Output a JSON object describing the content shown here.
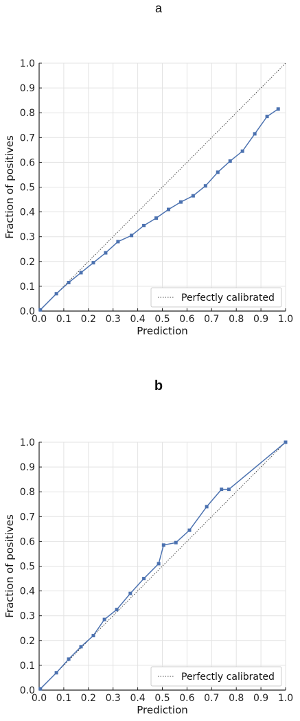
{
  "colors": {
    "series": "#4C72B0",
    "reference": "#444444",
    "grid": "#e3e3e3",
    "axis": "#222222"
  },
  "chart_data": [
    {
      "panel_label": "a",
      "type": "line",
      "xlabel": "Prediction",
      "ylabel": "Fraction of positives",
      "xlim": [
        0,
        1
      ],
      "ylim": [
        0,
        1
      ],
      "xticks": [
        "0.0",
        "0.1",
        "0.2",
        "0.3",
        "0.4",
        "0.5",
        "0.6",
        "0.7",
        "0.8",
        "0.9",
        "1.0"
      ],
      "yticks": [
        "0.0",
        "0.1",
        "0.2",
        "0.3",
        "0.4",
        "0.5",
        "0.6",
        "0.7",
        "0.8",
        "0.9",
        "1.0"
      ],
      "grid": true,
      "legend": {
        "entries": [
          "Perfectly calibrated"
        ],
        "placement": "bottom-right"
      },
      "reference_line": {
        "name": "Perfectly calibrated",
        "x": [
          0,
          1
        ],
        "y": [
          0,
          1
        ],
        "style": "dotted"
      },
      "series": [
        {
          "x": [
            0.005,
            0.07,
            0.12,
            0.17,
            0.22,
            0.27,
            0.32,
            0.375,
            0.425,
            0.475,
            0.525,
            0.575,
            0.625,
            0.675,
            0.725,
            0.775,
            0.825,
            0.875,
            0.925,
            0.97
          ],
          "y": [
            0.005,
            0.07,
            0.115,
            0.155,
            0.195,
            0.235,
            0.28,
            0.305,
            0.345,
            0.375,
            0.41,
            0.44,
            0.465,
            0.505,
            0.56,
            0.605,
            0.645,
            0.715,
            0.785,
            0.815
          ]
        }
      ]
    },
    {
      "panel_label": "b",
      "type": "line",
      "xlabel": "Prediction",
      "ylabel": "Fraction of positives",
      "xlim": [
        0,
        1
      ],
      "ylim": [
        0,
        1
      ],
      "xticks": [
        "0.0",
        "0.1",
        "0.2",
        "0.3",
        "0.4",
        "0.5",
        "0.6",
        "0.7",
        "0.8",
        "0.9",
        "1.0"
      ],
      "yticks": [
        "0.0",
        "0.1",
        "0.2",
        "0.3",
        "0.4",
        "0.5",
        "0.6",
        "0.7",
        "0.8",
        "0.9",
        "1.0"
      ],
      "grid": true,
      "legend": {
        "entries": [
          "Perfectly calibrated"
        ],
        "placement": "bottom-right"
      },
      "reference_line": {
        "name": "Perfectly calibrated",
        "x": [
          0,
          1
        ],
        "y": [
          0,
          1
        ],
        "style": "dotted"
      },
      "series": [
        {
          "x": [
            0.005,
            0.07,
            0.12,
            0.17,
            0.22,
            0.265,
            0.315,
            0.37,
            0.425,
            0.485,
            0.505,
            0.555,
            0.61,
            0.68,
            0.74,
            0.77,
            1.0
          ],
          "y": [
            0.005,
            0.07,
            0.125,
            0.175,
            0.22,
            0.285,
            0.325,
            0.39,
            0.45,
            0.51,
            0.585,
            0.595,
            0.645,
            0.74,
            0.81,
            0.81,
            1.0
          ]
        }
      ]
    }
  ]
}
